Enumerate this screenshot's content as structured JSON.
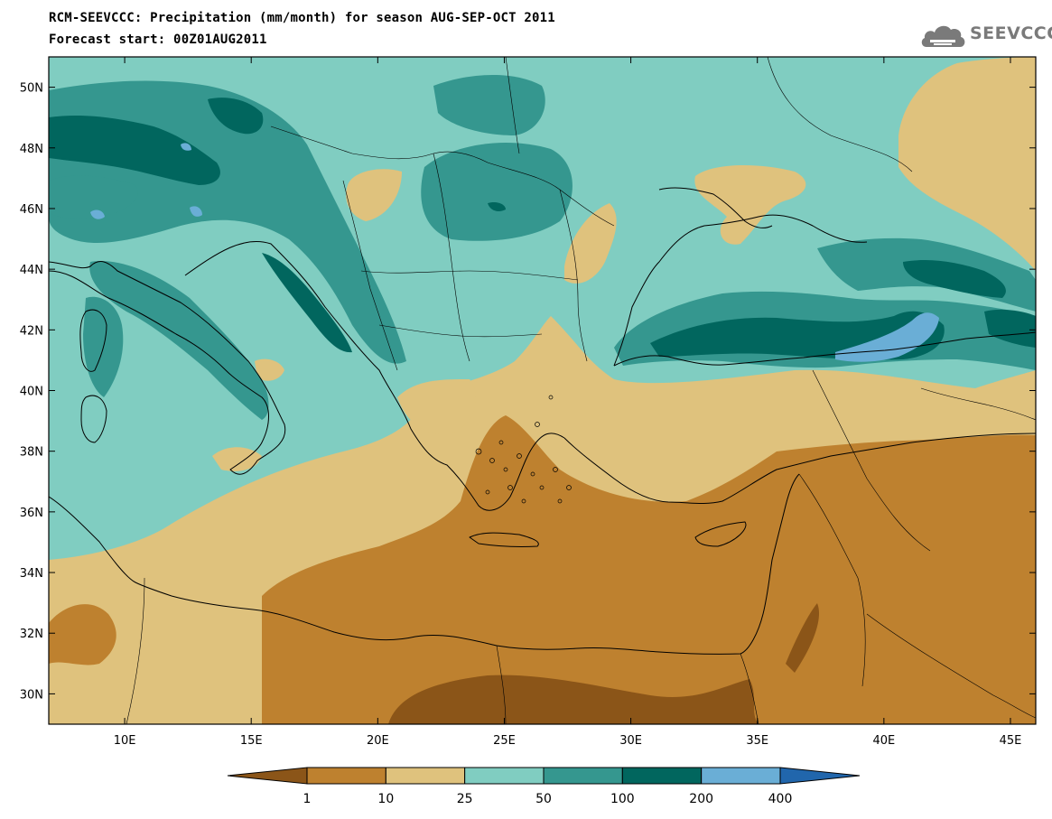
{
  "header": {
    "title": "RCM-SEEVCCC: Precipitation (mm/month) for season AUG-SEP-OCT 2011",
    "subtitle": "Forecast start: 00Z01AUG2011"
  },
  "logo": {
    "text": "SEEVCCC",
    "icon": "cloud-logo-icon"
  },
  "map": {
    "lon_range": [
      7,
      46
    ],
    "lat_range": [
      29,
      51
    ],
    "lon_ticks": [
      {
        "value": 10,
        "label": "10E"
      },
      {
        "value": 15,
        "label": "15E"
      },
      {
        "value": 20,
        "label": "20E"
      },
      {
        "value": 25,
        "label": "25E"
      },
      {
        "value": 30,
        "label": "30E"
      },
      {
        "value": 35,
        "label": "35E"
      },
      {
        "value": 40,
        "label": "40E"
      },
      {
        "value": 45,
        "label": "45E"
      }
    ],
    "lat_ticks": [
      {
        "value": 50,
        "label": "50N"
      },
      {
        "value": 48,
        "label": "48N"
      },
      {
        "value": 46,
        "label": "46N"
      },
      {
        "value": 44,
        "label": "44N"
      },
      {
        "value": 42,
        "label": "42N"
      },
      {
        "value": 40,
        "label": "40N"
      },
      {
        "value": 38,
        "label": "38N"
      },
      {
        "value": 36,
        "label": "36N"
      },
      {
        "value": 34,
        "label": "34N"
      },
      {
        "value": 32,
        "label": "32N"
      },
      {
        "value": 30,
        "label": "30N"
      }
    ]
  },
  "colorbar": {
    "boundaries": [
      "1",
      "10",
      "25",
      "50",
      "100",
      "200",
      "400"
    ],
    "colors": [
      "#8b5518",
      "#be812f",
      "#dfc27d",
      "#80cdc1",
      "#35978f",
      "#01665e",
      "#6aaed6",
      "#2166ac"
    ]
  }
}
